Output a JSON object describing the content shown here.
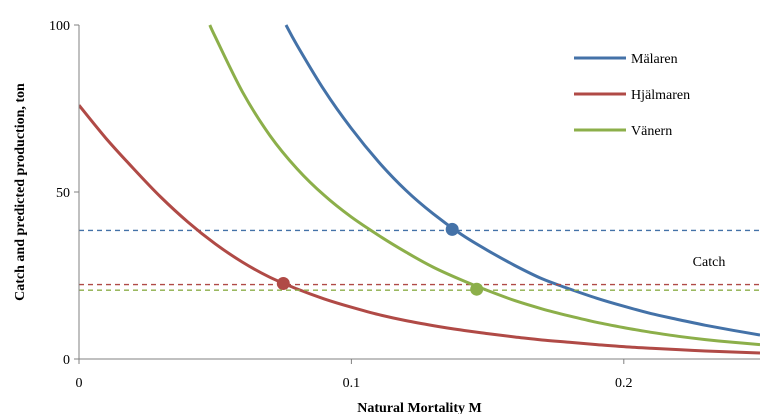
{
  "chart_data": {
    "type": "line",
    "title": "",
    "xlabel": "Natural Mortality M",
    "ylabel": "Catch and predicted production, ton",
    "xlim": [
      0,
      0.25
    ],
    "ylim": [
      0,
      100
    ],
    "xticks": [
      {
        "value": 0,
        "label": "0"
      },
      {
        "value": 0.1,
        "label": "0.1"
      },
      {
        "value": 0.2,
        "label": "0.2"
      }
    ],
    "yticks": [
      {
        "value": 0,
        "label": "0"
      },
      {
        "value": 50,
        "label": "50"
      },
      {
        "value": 100,
        "label": "100"
      }
    ],
    "grid": false,
    "legend_position": "top-right",
    "annotation": "Catch",
    "series": [
      {
        "name": "Mälaren",
        "color": "#4472A8",
        "x": [
          0.076,
          0.08,
          0.09,
          0.1,
          0.11,
          0.12,
          0.13,
          0.14,
          0.15,
          0.16,
          0.17,
          0.18,
          0.19,
          0.2,
          0.21,
          0.22,
          0.23,
          0.24,
          0.25
        ],
        "y": [
          100,
          94,
          80.5,
          69,
          59,
          50.5,
          43.5,
          37.5,
          32.5,
          28,
          24,
          21,
          18.2,
          15.8,
          13.6,
          11.8,
          10.1,
          8.6,
          7.2
        ],
        "catch": 38.5,
        "intersection": [
          0.137,
          38.8
        ]
      },
      {
        "name": "Hjälmaren",
        "color": "#B04A46",
        "x": [
          0,
          0.01,
          0.02,
          0.03,
          0.04,
          0.05,
          0.06,
          0.07,
          0.08,
          0.09,
          0.1,
          0.11,
          0.12,
          0.13,
          0.14,
          0.15,
          0.16,
          0.17,
          0.18,
          0.19,
          0.2,
          0.21,
          0.22,
          0.23,
          0.24,
          0.25
        ],
        "y": [
          76,
          66,
          57,
          48.5,
          41,
          34.5,
          29,
          24.5,
          21,
          18,
          15.5,
          13.3,
          11.5,
          10,
          8.7,
          7.6,
          6.6,
          5.7,
          5,
          4.3,
          3.7,
          3.2,
          2.8,
          2.4,
          2.1,
          1.8
        ],
        "catch": 22.3,
        "intersection": [
          0.075,
          22.6
        ]
      },
      {
        "name": "Vänern",
        "color": "#8CAF4A",
        "x": [
          0.048,
          0.05,
          0.06,
          0.07,
          0.08,
          0.09,
          0.1,
          0.11,
          0.12,
          0.13,
          0.14,
          0.15,
          0.16,
          0.17,
          0.18,
          0.19,
          0.2,
          0.21,
          0.22,
          0.23,
          0.24,
          0.25
        ],
        "y": [
          100,
          96.5,
          80,
          67,
          57,
          49,
          42.5,
          37,
          32,
          27.5,
          23.8,
          20.5,
          17.5,
          15,
          12.9,
          11,
          9.4,
          8,
          6.8,
          5.8,
          5,
          4.3
        ],
        "catch": 20.6,
        "intersection": [
          0.146,
          20.9
        ]
      }
    ]
  }
}
